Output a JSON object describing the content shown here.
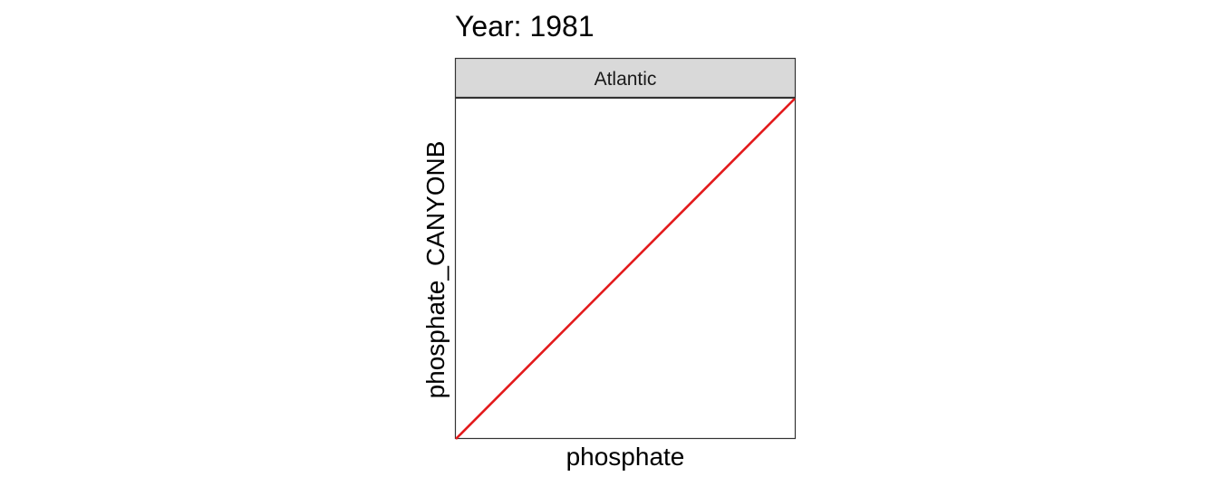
{
  "chart_data": {
    "type": "line",
    "title": "Year: 1981",
    "facet": "Atlantic",
    "xlabel": "phosphate",
    "ylabel": "phosphate_CANYONB",
    "x_ticks_shown": false,
    "y_ticks_shown": false,
    "grid": false,
    "xlim": [
      0,
      1
    ],
    "ylim": [
      0,
      1
    ],
    "series": [
      {
        "style": "identity line (y = x)",
        "color": "#e31a1c",
        "x": [
          0,
          1
        ],
        "y": [
          0,
          1
        ]
      }
    ]
  }
}
